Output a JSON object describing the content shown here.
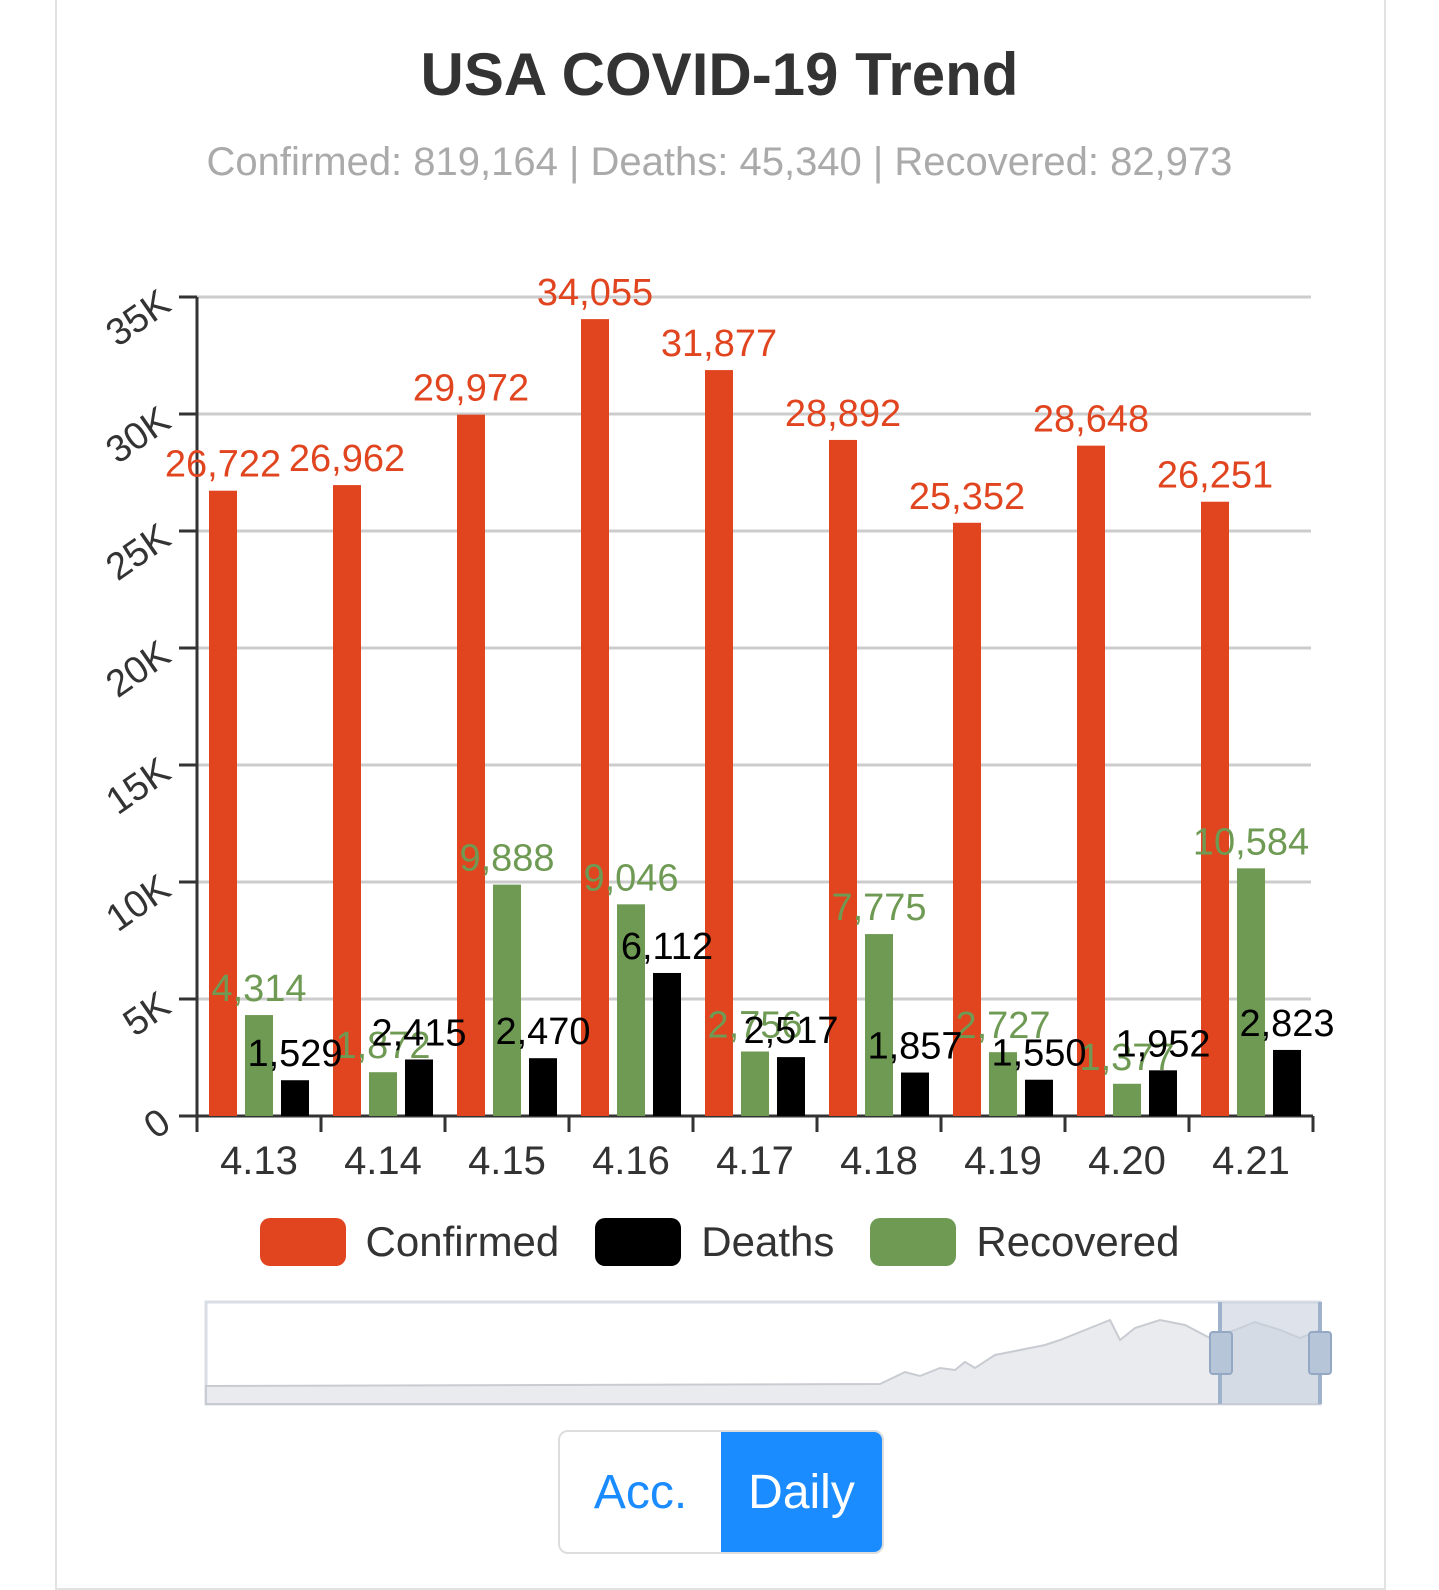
{
  "title": "USA COVID-19 Trend",
  "subtitle": "Confirmed: 819,164 | Deaths: 45,340 | Recovered: 82,973",
  "colors": {
    "confirmed": "#e14520",
    "deaths": "#000000",
    "recovered": "#6e9a53",
    "accent": "#1a8cff"
  },
  "chart_data": {
    "type": "bar",
    "categories": [
      "4.13",
      "4.14",
      "4.15",
      "4.16",
      "4.17",
      "4.18",
      "4.19",
      "4.20",
      "4.21"
    ],
    "series": [
      {
        "name": "Confirmed",
        "values": [
          26722,
          26962,
          29972,
          34055,
          31877,
          28892,
          25352,
          28648,
          26251
        ],
        "labels": [
          "26,722",
          "26,962",
          "29,972",
          "34,055",
          "31,877",
          "28,892",
          "25,352",
          "28,648",
          "26,251"
        ]
      },
      {
        "name": "Recovered",
        "values": [
          4314,
          1872,
          9888,
          9046,
          2756,
          7775,
          2727,
          1377,
          10584
        ],
        "labels": [
          "4,314",
          "1,872",
          "9,888",
          "9,046",
          "2,756",
          "7,775",
          "2,727",
          "1,377",
          "10,584"
        ]
      },
      {
        "name": "Deaths",
        "values": [
          1529,
          2415,
          2470,
          6112,
          2517,
          1857,
          1550,
          1952,
          2823
        ],
        "labels": [
          "1,529",
          "2,415",
          "2,470",
          "6,112",
          "2,517",
          "1,857",
          "1,550",
          "1,952",
          "2,823"
        ]
      }
    ],
    "y_ticks": [
      "0",
      "5K",
      "10K",
      "15K",
      "20K",
      "25K",
      "30K",
      "35K"
    ],
    "ylim": [
      0,
      35000
    ],
    "grid": true,
    "legend_position": "bottom"
  },
  "legend": [
    {
      "label": "Confirmed",
      "color": "#e14520"
    },
    {
      "label": "Deaths",
      "color": "#000000"
    },
    {
      "label": "Recovered",
      "color": "#6e9a53"
    }
  ],
  "toggle": {
    "acc_label": "Acc.",
    "daily_label": "Daily",
    "selected": "Daily"
  }
}
